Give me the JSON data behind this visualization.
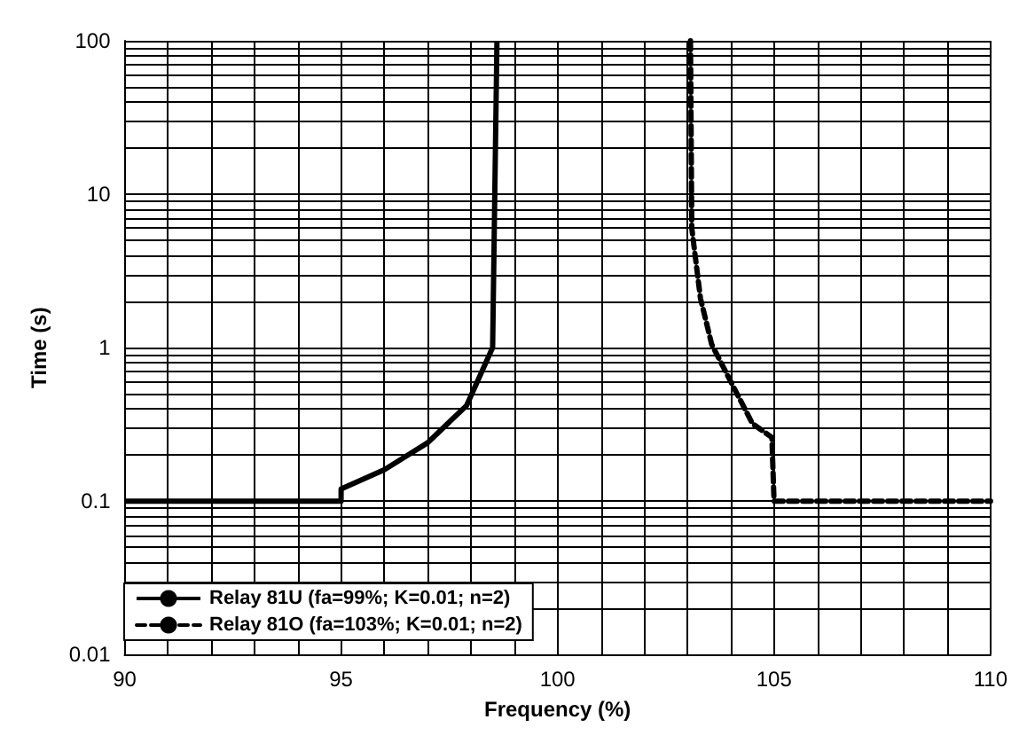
{
  "chart_data": {
    "type": "line",
    "xlabel": "Frequency (%)",
    "ylabel": "Time (s)",
    "log": "y",
    "grid": true,
    "legend": "bottom left",
    "marker": "none",
    "xlim": [
      90,
      110
    ],
    "xticks": [
      90,
      {
        "value": 91,
        "label": null
      },
      {
        "value": 92,
        "label": null
      },
      {
        "value": 93,
        "label": null
      },
      {
        "value": 94,
        "label": null
      },
      95,
      {
        "value": 96,
        "label": null
      },
      {
        "value": 97,
        "label": null
      },
      {
        "value": 98,
        "label": null
      },
      {
        "value": 99,
        "label": null
      },
      100,
      {
        "value": 101,
        "label": null
      },
      {
        "value": 102,
        "label": null
      },
      {
        "value": 103,
        "label": null
      },
      {
        "value": 104,
        "label": null
      },
      105,
      {
        "value": 106,
        "label": null
      },
      {
        "value": 107,
        "label": null
      },
      {
        "value": 108,
        "label": null
      },
      {
        "value": 109,
        "label": null
      },
      110
    ],
    "ylim": [
      0.01,
      100
    ],
    "yticks": [
      0.01,
      {
        "value": 0.02,
        "label": null
      },
      {
        "value": 0.03,
        "label": null
      },
      {
        "value": 0.04,
        "label": null
      },
      {
        "value": 0.05,
        "label": null
      },
      {
        "value": 0.06,
        "label": null
      },
      {
        "value": 0.07,
        "label": null
      },
      {
        "value": 0.08,
        "label": null
      },
      {
        "value": 0.09,
        "label": null
      },
      0.1,
      {
        "value": 0.2,
        "label": null
      },
      {
        "value": 0.3,
        "label": null
      },
      {
        "value": 0.4,
        "label": null
      },
      {
        "value": 0.5,
        "label": null
      },
      {
        "value": 0.6,
        "label": null
      },
      {
        "value": 0.7,
        "label": null
      },
      {
        "value": 0.8,
        "label": null
      },
      {
        "value": 0.9,
        "label": null
      },
      1,
      {
        "value": 2,
        "label": null
      },
      {
        "value": 3,
        "label": null
      },
      {
        "value": 4,
        "label": null
      },
      {
        "value": 5,
        "label": null
      },
      {
        "value": 6,
        "label": null
      },
      {
        "value": 7,
        "label": null
      },
      {
        "value": 8,
        "label": null
      },
      {
        "value": 9,
        "label": null
      },
      10,
      {
        "value": 20,
        "label": null
      },
      {
        "value": 30,
        "label": null
      },
      {
        "value": 40,
        "label": null
      },
      {
        "value": 50,
        "label": null
      },
      {
        "value": 60,
        "label": null
      },
      {
        "value": 70,
        "label": null
      },
      {
        "value": 80,
        "label": null
      },
      {
        "value": 90,
        "label": null
      },
      100
    ],
    "series": [
      {
        "name": "Relay 81U (fa=99%; K=0.01; n=2)",
        "color": "#000000",
        "line_style": "solid",
        "x": [
          90,
          95,
          95,
          96,
          97,
          97.9,
          98.5,
          98.6
        ],
        "values": [
          0.1,
          0.1,
          0.12,
          0.16,
          0.24,
          0.42,
          1,
          100
        ]
      },
      {
        "name": "Relay 81O (fa=103%; K=0.01; n=2)",
        "color": "#000000",
        "line_style": "dashed",
        "x": [
          103.07,
          103.1,
          103.3,
          103.56,
          103.95,
          104.5,
          104.95,
          105,
          110
        ],
        "values": [
          100,
          6,
          2.1,
          1.05,
          0.64,
          0.32,
          0.26,
          0.1,
          0.1
        ]
      }
    ]
  }
}
